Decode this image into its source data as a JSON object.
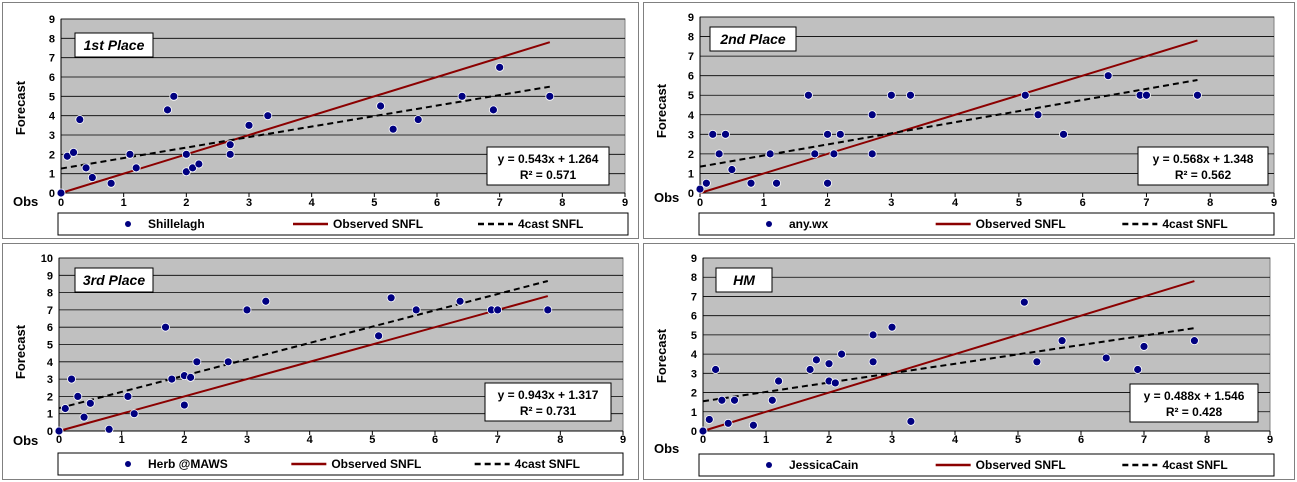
{
  "chart_data": [
    {
      "type": "scatter",
      "title": "1st Place",
      "xlabel": "Obs",
      "ylabel": "Forecast",
      "xlim": [
        0,
        9
      ],
      "ylim": [
        0,
        9
      ],
      "x_ticks": [
        0,
        1,
        2,
        3,
        4,
        5,
        6,
        7,
        8,
        9
      ],
      "y_ticks": [
        0,
        1,
        2,
        3,
        4,
        5,
        6,
        7,
        8,
        9
      ],
      "grid": "horizontal",
      "legend_position": "bottom",
      "series": [
        {
          "name": "Shillelagh",
          "kind": "points",
          "x": [
            0,
            0.1,
            0.2,
            0.3,
            0.4,
            0.5,
            0.8,
            1.1,
            1.2,
            1.7,
            1.8,
            2.0,
            2.0,
            2.1,
            2.2,
            2.7,
            2.7,
            3.0,
            3.3,
            5.1,
            5.3,
            5.7,
            6.4,
            6.9,
            7.0,
            7.8
          ],
          "y": [
            0,
            1.9,
            2.1,
            3.8,
            1.3,
            0.8,
            0.5,
            2.0,
            1.3,
            4.3,
            5.0,
            1.1,
            2.0,
            1.3,
            1.5,
            2.0,
            2.5,
            3.5,
            4.0,
            4.5,
            3.3,
            3.8,
            5.0,
            4.3,
            6.5,
            5.0
          ]
        },
        {
          "name": "Observed SNFL",
          "kind": "line",
          "style": "solid",
          "x": [
            0,
            7.8
          ],
          "y": [
            0,
            7.8
          ]
        },
        {
          "name": "4cast SNFL",
          "kind": "line",
          "style": "dashed",
          "x": [
            0,
            7.8
          ],
          "y": [
            1.264,
            5.499
          ]
        }
      ],
      "equation": "y = 0.543x + 1.264",
      "r_squared": "R² = 0.571"
    },
    {
      "type": "scatter",
      "title": "2nd Place",
      "xlabel": "Obs",
      "ylabel": "Forecast",
      "xlim": [
        0,
        9
      ],
      "ylim": [
        0,
        9
      ],
      "x_ticks": [
        0,
        1,
        2,
        3,
        4,
        5,
        6,
        7,
        8,
        9
      ],
      "y_ticks": [
        0,
        1,
        2,
        3,
        4,
        5,
        6,
        7,
        8,
        9
      ],
      "grid": "horizontal",
      "legend_position": "bottom",
      "series": [
        {
          "name": "any.wx",
          "kind": "points",
          "x": [
            0,
            0.1,
            0.2,
            0.3,
            0.4,
            0.5,
            0.8,
            1.1,
            1.2,
            1.7,
            1.8,
            2.0,
            2.0,
            2.1,
            2.2,
            2.7,
            2.7,
            3.0,
            3.3,
            5.1,
            5.3,
            5.7,
            6.4,
            6.9,
            7.0,
            7.8
          ],
          "y": [
            0.2,
            0.5,
            3.0,
            2.0,
            3.0,
            1.2,
            0.5,
            2.0,
            0.5,
            5.0,
            2.0,
            3.0,
            0.5,
            2.0,
            3.0,
            4.0,
            2.0,
            5.0,
            5.0,
            5.0,
            4.0,
            3.0,
            6.0,
            5.0,
            5.0,
            5.0
          ]
        },
        {
          "name": "Observed SNFL",
          "kind": "line",
          "style": "solid",
          "x": [
            0,
            7.8
          ],
          "y": [
            0,
            7.8
          ]
        },
        {
          "name": "4cast SNFL",
          "kind": "line",
          "style": "dashed",
          "x": [
            0,
            7.8
          ],
          "y": [
            1.348,
            5.778
          ]
        }
      ],
      "equation": "y = 0.568x + 1.348",
      "r_squared": "R² = 0.562"
    },
    {
      "type": "scatter",
      "title": "3rd Place",
      "xlabel": "Obs",
      "ylabel": "Forecast",
      "xlim": [
        0,
        9
      ],
      "ylim": [
        0,
        10
      ],
      "x_ticks": [
        0,
        1,
        2,
        3,
        4,
        5,
        6,
        7,
        8,
        9
      ],
      "y_ticks": [
        0,
        1,
        2,
        3,
        4,
        5,
        6,
        7,
        8,
        9,
        10
      ],
      "grid": "horizontal",
      "legend_position": "bottom",
      "series": [
        {
          "name": "Herb @MAWS",
          "kind": "points",
          "x": [
            0,
            0.1,
            0.2,
            0.3,
            0.4,
            0.5,
            0.8,
            1.1,
            1.2,
            1.7,
            1.8,
            2.0,
            2.0,
            2.1,
            2.2,
            2.7,
            3.0,
            3.3,
            5.1,
            5.3,
            5.7,
            6.4,
            6.9,
            7.0,
            7.8
          ],
          "y": [
            0,
            1.3,
            3.0,
            2.0,
            0.8,
            1.6,
            0.1,
            2.0,
            1.0,
            6.0,
            3.0,
            3.2,
            1.5,
            3.1,
            4.0,
            4.0,
            7.0,
            7.5,
            5.5,
            7.7,
            7.0,
            7.5,
            7.0,
            7.0,
            7.0
          ]
        },
        {
          "name": "Observed SNFL",
          "kind": "line",
          "style": "solid",
          "x": [
            0,
            7.8
          ],
          "y": [
            0,
            7.8
          ]
        },
        {
          "name": "4cast SNFL",
          "kind": "line",
          "style": "dashed",
          "x": [
            0,
            7.8
          ],
          "y": [
            1.317,
            8.672
          ]
        }
      ],
      "equation": "y = 0.943x + 1.317",
      "r_squared": "R² = 0.731"
    },
    {
      "type": "scatter",
      "title": "HM",
      "xlabel": "Obs",
      "ylabel": "Forecast",
      "xlim": [
        0,
        9
      ],
      "ylim": [
        0,
        9
      ],
      "x_ticks": [
        0,
        1,
        2,
        3,
        4,
        5,
        6,
        7,
        8,
        9
      ],
      "y_ticks": [
        0,
        1,
        2,
        3,
        4,
        5,
        6,
        7,
        8,
        9
      ],
      "grid": "horizontal",
      "legend_position": "bottom",
      "series": [
        {
          "name": "JessicaCain",
          "kind": "points",
          "x": [
            0,
            0.1,
            0.2,
            0.3,
            0.4,
            0.5,
            0.8,
            1.1,
            1.2,
            1.7,
            1.8,
            2.0,
            2.0,
            2.1,
            2.2,
            2.7,
            2.7,
            3.0,
            3.3,
            5.1,
            5.3,
            5.7,
            6.4,
            6.9,
            7.0,
            7.8
          ],
          "y": [
            0,
            0.6,
            3.2,
            1.6,
            0.4,
            1.6,
            0.3,
            1.6,
            2.6,
            3.2,
            3.7,
            3.5,
            2.6,
            2.5,
            4.0,
            5.0,
            3.6,
            5.4,
            0.5,
            6.7,
            3.6,
            4.7,
            3.8,
            3.2,
            4.4,
            4.7
          ]
        },
        {
          "name": "Observed SNFL",
          "kind": "line",
          "style": "solid",
          "x": [
            0,
            7.8
          ],
          "y": [
            0,
            7.8
          ]
        },
        {
          "name": "4cast SNFL",
          "kind": "line",
          "style": "dashed",
          "x": [
            0,
            7.8
          ],
          "y": [
            1.546,
            5.352
          ]
        }
      ],
      "equation": "y = 0.488x + 1.546",
      "r_squared": "R² = 0.428"
    }
  ],
  "colors": {
    "plot_bg": "#c0c0c0",
    "grid": "#000000",
    "points": "#000080",
    "observed_line": "#8b0000",
    "forecast_line": "#000000"
  }
}
